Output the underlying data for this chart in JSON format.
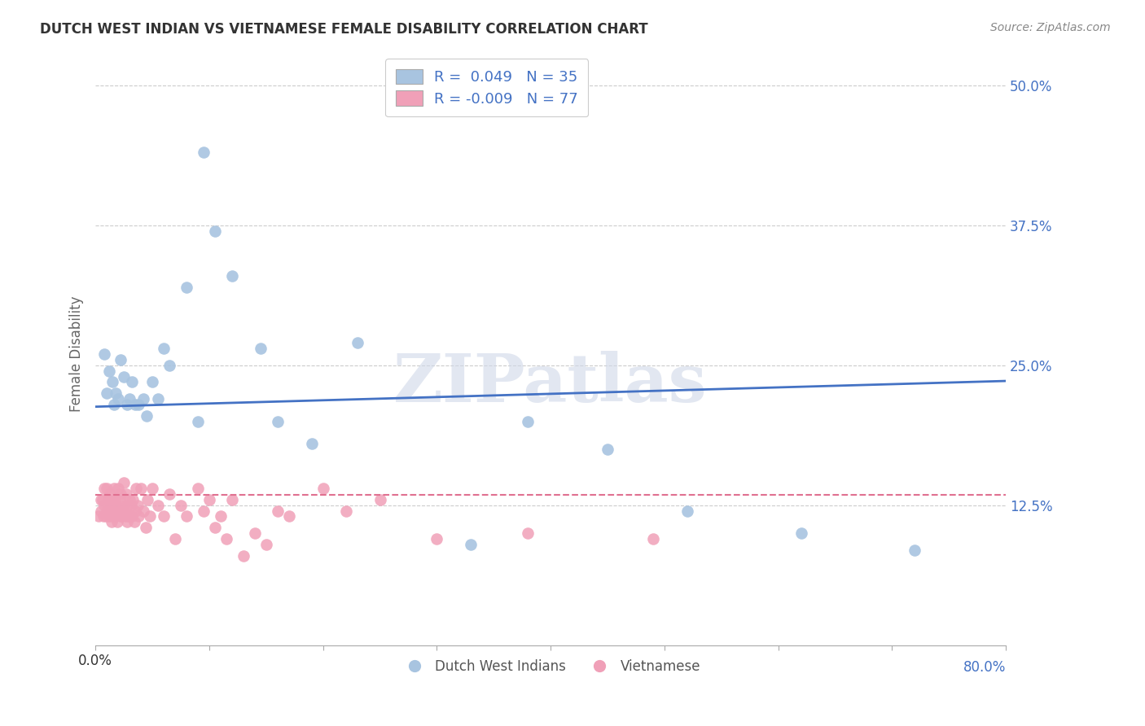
{
  "title": "DUTCH WEST INDIAN VS VIETNAMESE FEMALE DISABILITY CORRELATION CHART",
  "source": "Source: ZipAtlas.com",
  "ylabel": "Female Disability",
  "xlim": [
    0.0,
    0.8
  ],
  "ylim": [
    0.0,
    0.52
  ],
  "ytick_labels": [
    "12.5%",
    "25.0%",
    "37.5%",
    "50.0%"
  ],
  "ytick_values": [
    0.125,
    0.25,
    0.375,
    0.5
  ],
  "xtick_values": [
    0.0,
    0.1,
    0.2,
    0.3,
    0.4,
    0.5,
    0.6,
    0.7,
    0.8
  ],
  "blue_R": 0.049,
  "blue_N": 35,
  "pink_R": -0.009,
  "pink_N": 77,
  "blue_color": "#a8c4e0",
  "pink_color": "#f0a0b8",
  "blue_line_color": "#4472c4",
  "pink_line_color": "#e07090",
  "watermark": "ZIPatlas",
  "watermark_color": "#d0d8e8",
  "legend_blue_label": "Dutch West Indians",
  "legend_pink_label": "Vietnamese",
  "blue_line_start_y": 0.213,
  "blue_line_end_y": 0.236,
  "pink_line_y": 0.134,
  "blue_scatter_x": [
    0.008,
    0.01,
    0.012,
    0.015,
    0.016,
    0.018,
    0.02,
    0.022,
    0.025,
    0.028,
    0.03,
    0.032,
    0.035,
    0.038,
    0.042,
    0.045,
    0.05,
    0.055,
    0.06,
    0.065,
    0.08,
    0.09,
    0.095,
    0.105,
    0.12,
    0.145,
    0.16,
    0.19,
    0.23,
    0.33,
    0.38,
    0.45,
    0.52,
    0.62,
    0.72
  ],
  "blue_scatter_y": [
    0.26,
    0.225,
    0.245,
    0.235,
    0.215,
    0.225,
    0.22,
    0.255,
    0.24,
    0.215,
    0.22,
    0.235,
    0.215,
    0.215,
    0.22,
    0.205,
    0.235,
    0.22,
    0.265,
    0.25,
    0.32,
    0.2,
    0.44,
    0.37,
    0.33,
    0.265,
    0.2,
    0.18,
    0.27,
    0.09,
    0.2,
    0.175,
    0.12,
    0.1,
    0.085
  ],
  "pink_scatter_x": [
    0.003,
    0.005,
    0.005,
    0.006,
    0.007,
    0.008,
    0.008,
    0.009,
    0.01,
    0.01,
    0.011,
    0.012,
    0.012,
    0.013,
    0.014,
    0.015,
    0.015,
    0.016,
    0.016,
    0.017,
    0.018,
    0.018,
    0.019,
    0.02,
    0.02,
    0.021,
    0.022,
    0.022,
    0.023,
    0.024,
    0.025,
    0.025,
    0.026,
    0.027,
    0.028,
    0.028,
    0.029,
    0.03,
    0.03,
    0.031,
    0.032,
    0.033,
    0.034,
    0.035,
    0.036,
    0.037,
    0.038,
    0.04,
    0.042,
    0.044,
    0.046,
    0.048,
    0.05,
    0.055,
    0.06,
    0.065,
    0.07,
    0.075,
    0.08,
    0.09,
    0.095,
    0.1,
    0.105,
    0.11,
    0.115,
    0.12,
    0.13,
    0.14,
    0.15,
    0.16,
    0.17,
    0.2,
    0.22,
    0.25,
    0.3,
    0.38,
    0.49
  ],
  "pink_scatter_y": [
    0.115,
    0.13,
    0.12,
    0.13,
    0.115,
    0.125,
    0.14,
    0.115,
    0.14,
    0.12,
    0.13,
    0.125,
    0.115,
    0.135,
    0.11,
    0.13,
    0.115,
    0.14,
    0.12,
    0.13,
    0.115,
    0.125,
    0.11,
    0.14,
    0.12,
    0.13,
    0.115,
    0.135,
    0.115,
    0.12,
    0.145,
    0.125,
    0.115,
    0.135,
    0.11,
    0.125,
    0.115,
    0.13,
    0.115,
    0.125,
    0.115,
    0.13,
    0.11,
    0.12,
    0.14,
    0.125,
    0.115,
    0.14,
    0.12,
    0.105,
    0.13,
    0.115,
    0.14,
    0.125,
    0.115,
    0.135,
    0.095,
    0.125,
    0.115,
    0.14,
    0.12,
    0.13,
    0.105,
    0.115,
    0.095,
    0.13,
    0.08,
    0.1,
    0.09,
    0.12,
    0.115,
    0.14,
    0.12,
    0.13,
    0.095,
    0.1,
    0.095
  ]
}
